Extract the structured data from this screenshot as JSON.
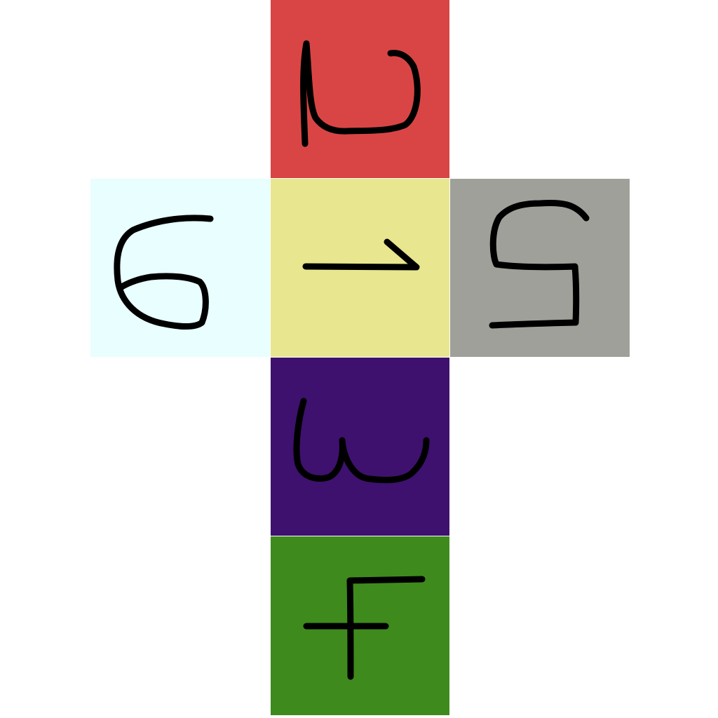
{
  "cube_net": {
    "faces": [
      {
        "id": "top",
        "digit": "2",
        "orientation": "rotated-90-ccw",
        "color": "#d94545"
      },
      {
        "id": "left",
        "digit": "6",
        "orientation": "rotated-90-cw",
        "color": "#e8feff"
      },
      {
        "id": "center",
        "digit": "1",
        "orientation": "rotated-90-cw",
        "color": "#e8e68e"
      },
      {
        "id": "right",
        "digit": "5",
        "orientation": "mirrored",
        "color": "#a0a09a"
      },
      {
        "id": "below",
        "digit": "3",
        "orientation": "rotated-90-cw",
        "color": "#3d116d"
      },
      {
        "id": "bottom",
        "digit": "4",
        "orientation": "rotated-90-cw",
        "color": "#3f8a1c"
      }
    ]
  }
}
